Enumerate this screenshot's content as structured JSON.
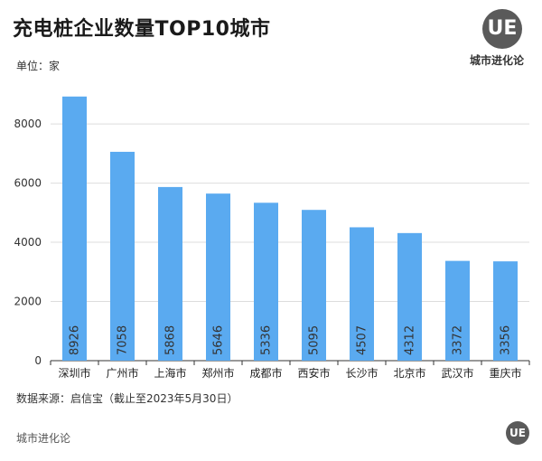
{
  "header": {
    "title": "充电桩企业数量TOP10城市",
    "unit": "单位：家",
    "logo_mark": "UE",
    "logo_text": "城市进化论"
  },
  "footer": {
    "source": "数据来源：启信宝（截止至2023年5月30日）",
    "brand": "城市进化论",
    "logo_mark": "UE"
  },
  "colors": {
    "bar": "#5aaaf0",
    "grid": "#dddddd",
    "axis": "#333333"
  },
  "chart_data": {
    "type": "bar",
    "title": "充电桩企业数量TOP10城市",
    "xlabel": "",
    "ylabel": "",
    "categories": [
      "深圳市",
      "广州市",
      "上海市",
      "郑州市",
      "成都市",
      "西安市",
      "长沙市",
      "北京市",
      "武汉市",
      "重庆市"
    ],
    "values": [
      8926,
      7058,
      5868,
      5646,
      5336,
      5095,
      4507,
      4312,
      3372,
      3356
    ],
    "yticks": [
      0,
      2000,
      4000,
      6000,
      8000
    ],
    "ylim": [
      0,
      9500
    ],
    "grid": true,
    "data_labels": "inside-bottom-vertical"
  }
}
